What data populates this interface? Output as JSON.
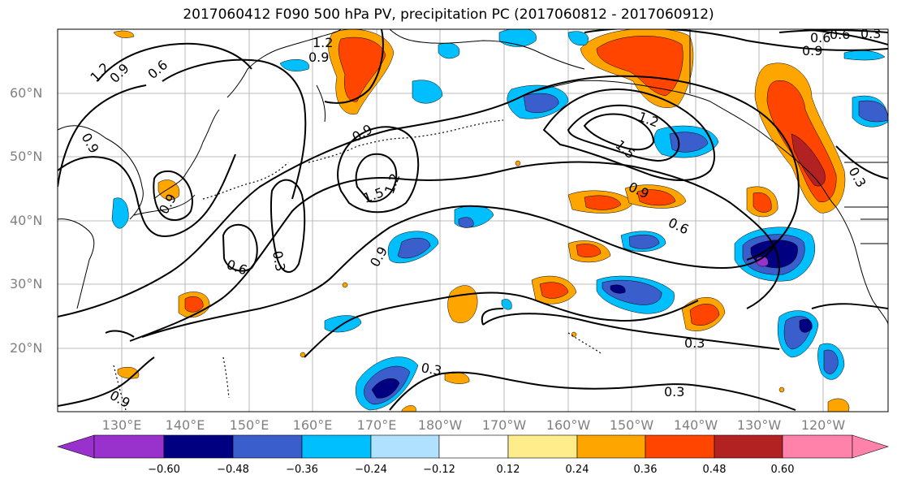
{
  "title": "2017060412 F090 500 hPa PV, precipitation PC (2017060812 - 2017060912)",
  "lat_labels": [
    "60°N",
    "50°N",
    "40°N",
    "30°N",
    "20°N"
  ],
  "lon_labels": [
    "130°E",
    "140°E",
    "150°E",
    "160°E",
    "170°E",
    "180°W",
    "170°W",
    "160°W",
    "150°W",
    "140°W",
    "130°W",
    "120°W"
  ],
  "contour_labels": [
    "1.2",
    "0.9",
    "0.6",
    "0.9",
    "1.2",
    "0.9",
    "0.9",
    "0.9",
    "0.6",
    "1.5",
    "1.2",
    "0.9",
    "1.5",
    "1.2",
    "0.9",
    "0.6",
    "0.3",
    "0.6",
    "0.9",
    "0.3",
    "0.3",
    "0.3",
    "0.3",
    "0.9",
    "0.6",
    "0.3"
  ],
  "colorbar": {
    "ticks": [
      "−0.60",
      "−0.48",
      "−0.36",
      "−0.24",
      "−0.12",
      "0.12",
      "0.24",
      "0.36",
      "0.48",
      "0.60"
    ],
    "colors": [
      "#9932cc",
      "#000080",
      "#3a5fcd",
      "#00bfff",
      "#b0e2ff",
      "#ffffff",
      "#ffec8b",
      "#ffa500",
      "#ff4500",
      "#b22222",
      "#ff82ab"
    ]
  }
}
